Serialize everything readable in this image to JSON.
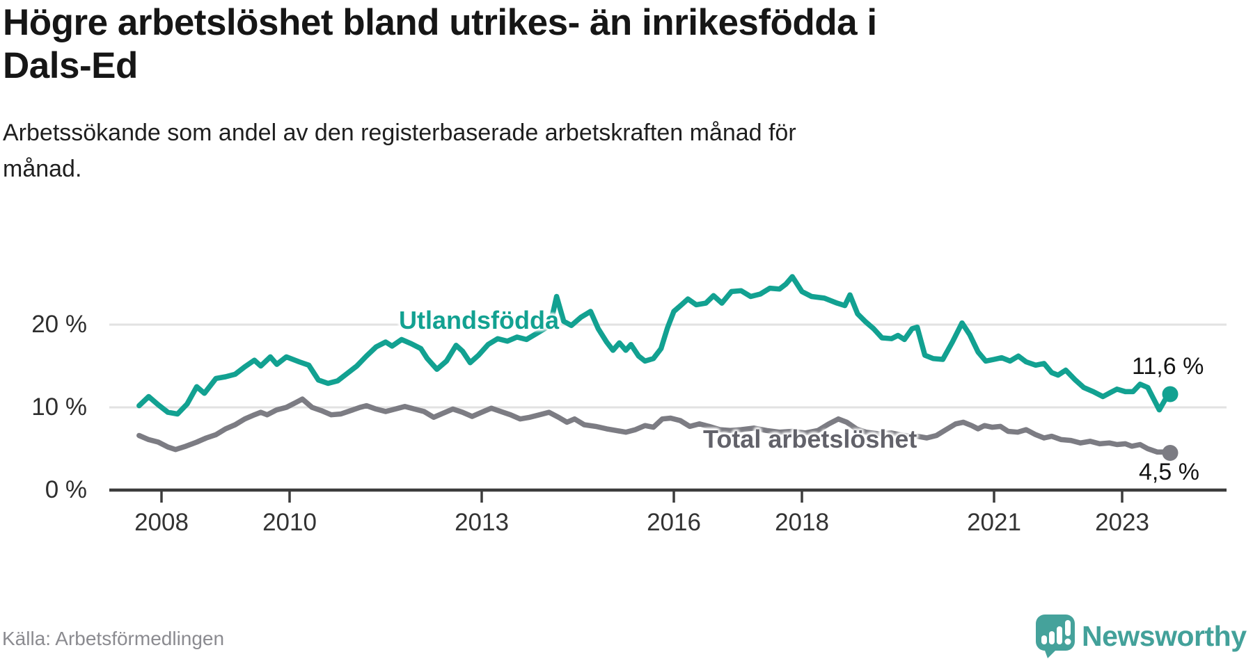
{
  "header": {
    "title_lines": [
      "Högre arbetslöshet bland utrikes- än inrikesfödda i",
      "Dals-Ed"
    ],
    "subtitle_lines": [
      "Arbetssökande som andel av den registerbaserade arbetskraften månad för",
      "månad."
    ]
  },
  "footer": {
    "source": "Källa: Arbetsförmedlingen",
    "brand_name": "Newsworthy",
    "brand_color": "#45a29b",
    "brand_icon": "bar-chart-speech-bubble-icon"
  },
  "chart_data": {
    "type": "line",
    "title": "Högre arbetslöshet bland utrikes- än inrikesfödda i Dals-Ed",
    "subtitle": "Arbetssökande som andel av den registerbaserade arbetskraften månad för månad.",
    "xlabel": "",
    "ylabel": "",
    "x_ticks": [
      2008,
      2010,
      2013,
      2016,
      2018,
      2021,
      2023
    ],
    "y_ticks": [
      0,
      10,
      20
    ],
    "y_tick_suffix": " %",
    "xlim": [
      2007.6,
      2024.2
    ],
    "ylim": [
      0,
      27
    ],
    "grid": "horizontal-only",
    "legend_position": "inline-labels",
    "colors": {
      "axis": "#3c3c3c",
      "grid": "#e2e2e2"
    },
    "series": [
      {
        "name": "Utlandsfödda",
        "color": "#12a191",
        "label_color": "#12a191",
        "end_label": "11,6 %",
        "end_value": 11.6,
        "points": [
          [
            2007.65,
            10.2
          ],
          [
            2007.8,
            11.3
          ],
          [
            2007.95,
            10.3
          ],
          [
            2008.1,
            9.4
          ],
          [
            2008.25,
            9.2
          ],
          [
            2008.4,
            10.4
          ],
          [
            2008.55,
            12.5
          ],
          [
            2008.67,
            11.7
          ],
          [
            2008.85,
            13.5
          ],
          [
            2009.0,
            13.7
          ],
          [
            2009.15,
            14.0
          ],
          [
            2009.3,
            14.9
          ],
          [
            2009.45,
            15.7
          ],
          [
            2009.55,
            15.0
          ],
          [
            2009.7,
            16.1
          ],
          [
            2009.8,
            15.2
          ],
          [
            2009.95,
            16.1
          ],
          [
            2010.15,
            15.5
          ],
          [
            2010.3,
            15.1
          ],
          [
            2010.45,
            13.3
          ],
          [
            2010.6,
            12.9
          ],
          [
            2010.75,
            13.2
          ],
          [
            2010.9,
            14.1
          ],
          [
            2011.05,
            15.0
          ],
          [
            2011.2,
            16.2
          ],
          [
            2011.35,
            17.3
          ],
          [
            2011.5,
            17.9
          ],
          [
            2011.6,
            17.4
          ],
          [
            2011.75,
            18.2
          ],
          [
            2011.9,
            17.7
          ],
          [
            2012.05,
            17.1
          ],
          [
            2012.15,
            15.9
          ],
          [
            2012.3,
            14.6
          ],
          [
            2012.45,
            15.6
          ],
          [
            2012.6,
            17.5
          ],
          [
            2012.7,
            16.8
          ],
          [
            2012.82,
            15.4
          ],
          [
            2012.95,
            16.3
          ],
          [
            2013.1,
            17.6
          ],
          [
            2013.25,
            18.3
          ],
          [
            2013.4,
            18.0
          ],
          [
            2013.55,
            18.5
          ],
          [
            2013.7,
            18.2
          ],
          [
            2013.85,
            18.9
          ],
          [
            2014.0,
            19.6
          ],
          [
            2014.1,
            21.0
          ],
          [
            2014.17,
            23.4
          ],
          [
            2014.28,
            20.4
          ],
          [
            2014.4,
            19.9
          ],
          [
            2014.55,
            20.9
          ],
          [
            2014.7,
            21.6
          ],
          [
            2014.82,
            19.5
          ],
          [
            2014.95,
            17.9
          ],
          [
            2015.05,
            16.9
          ],
          [
            2015.15,
            17.8
          ],
          [
            2015.25,
            16.9
          ],
          [
            2015.33,
            17.6
          ],
          [
            2015.45,
            16.2
          ],
          [
            2015.55,
            15.6
          ],
          [
            2015.68,
            15.9
          ],
          [
            2015.8,
            17.1
          ],
          [
            2015.9,
            19.6
          ],
          [
            2016.0,
            21.6
          ],
          [
            2016.12,
            22.4
          ],
          [
            2016.22,
            23.1
          ],
          [
            2016.35,
            22.4
          ],
          [
            2016.5,
            22.6
          ],
          [
            2016.62,
            23.5
          ],
          [
            2016.75,
            22.6
          ],
          [
            2016.9,
            24.0
          ],
          [
            2017.05,
            24.1
          ],
          [
            2017.2,
            23.4
          ],
          [
            2017.35,
            23.7
          ],
          [
            2017.5,
            24.4
          ],
          [
            2017.65,
            24.3
          ],
          [
            2017.75,
            24.9
          ],
          [
            2017.85,
            25.8
          ],
          [
            2018.0,
            24.0
          ],
          [
            2018.15,
            23.4
          ],
          [
            2018.35,
            23.2
          ],
          [
            2018.55,
            22.6
          ],
          [
            2018.67,
            22.3
          ],
          [
            2018.75,
            23.6
          ],
          [
            2018.87,
            21.3
          ],
          [
            2019.0,
            20.3
          ],
          [
            2019.12,
            19.5
          ],
          [
            2019.25,
            18.4
          ],
          [
            2019.4,
            18.3
          ],
          [
            2019.5,
            18.7
          ],
          [
            2019.6,
            18.2
          ],
          [
            2019.72,
            19.5
          ],
          [
            2019.8,
            19.7
          ],
          [
            2019.92,
            16.3
          ],
          [
            2020.05,
            15.9
          ],
          [
            2020.2,
            15.8
          ],
          [
            2020.35,
            17.9
          ],
          [
            2020.5,
            20.2
          ],
          [
            2020.62,
            18.8
          ],
          [
            2020.75,
            16.7
          ],
          [
            2020.87,
            15.6
          ],
          [
            2021.0,
            15.8
          ],
          [
            2021.12,
            16.0
          ],
          [
            2021.25,
            15.6
          ],
          [
            2021.38,
            16.2
          ],
          [
            2021.5,
            15.5
          ],
          [
            2021.65,
            15.1
          ],
          [
            2021.78,
            15.3
          ],
          [
            2021.9,
            14.2
          ],
          [
            2022.0,
            13.9
          ],
          [
            2022.12,
            14.5
          ],
          [
            2022.27,
            13.3
          ],
          [
            2022.4,
            12.4
          ],
          [
            2022.55,
            11.9
          ],
          [
            2022.7,
            11.3
          ],
          [
            2022.82,
            11.8
          ],
          [
            2022.92,
            12.2
          ],
          [
            2023.05,
            11.9
          ],
          [
            2023.17,
            11.9
          ],
          [
            2023.28,
            12.8
          ],
          [
            2023.4,
            12.4
          ],
          [
            2023.5,
            10.9
          ],
          [
            2023.58,
            9.7
          ],
          [
            2023.67,
            10.9
          ],
          [
            2023.75,
            11.6
          ]
        ]
      },
      {
        "name": "Total arbetslöshet",
        "color": "#7c7c83",
        "label_color": "#62626a",
        "end_label": "4,5 %",
        "end_value": 4.5,
        "points": [
          [
            2007.65,
            6.6
          ],
          [
            2007.8,
            6.1
          ],
          [
            2007.95,
            5.8
          ],
          [
            2008.1,
            5.2
          ],
          [
            2008.22,
            4.9
          ],
          [
            2008.38,
            5.3
          ],
          [
            2008.55,
            5.8
          ],
          [
            2008.7,
            6.3
          ],
          [
            2008.85,
            6.7
          ],
          [
            2009.0,
            7.4
          ],
          [
            2009.15,
            7.9
          ],
          [
            2009.3,
            8.6
          ],
          [
            2009.45,
            9.1
          ],
          [
            2009.55,
            9.4
          ],
          [
            2009.65,
            9.1
          ],
          [
            2009.8,
            9.7
          ],
          [
            2009.95,
            10.0
          ],
          [
            2010.1,
            10.6
          ],
          [
            2010.2,
            11.0
          ],
          [
            2010.35,
            10.0
          ],
          [
            2010.5,
            9.6
          ],
          [
            2010.65,
            9.1
          ],
          [
            2010.8,
            9.2
          ],
          [
            2010.95,
            9.6
          ],
          [
            2011.1,
            10.0
          ],
          [
            2011.2,
            10.2
          ],
          [
            2011.35,
            9.8
          ],
          [
            2011.5,
            9.5
          ],
          [
            2011.65,
            9.8
          ],
          [
            2011.8,
            10.1
          ],
          [
            2011.95,
            9.8
          ],
          [
            2012.1,
            9.5
          ],
          [
            2012.25,
            8.8
          ],
          [
            2012.4,
            9.3
          ],
          [
            2012.55,
            9.8
          ],
          [
            2012.7,
            9.4
          ],
          [
            2012.85,
            8.9
          ],
          [
            2013.0,
            9.4
          ],
          [
            2013.15,
            9.9
          ],
          [
            2013.3,
            9.5
          ],
          [
            2013.45,
            9.1
          ],
          [
            2013.6,
            8.6
          ],
          [
            2013.75,
            8.8
          ],
          [
            2013.9,
            9.1
          ],
          [
            2014.05,
            9.4
          ],
          [
            2014.2,
            8.8
          ],
          [
            2014.33,
            8.2
          ],
          [
            2014.45,
            8.6
          ],
          [
            2014.6,
            7.9
          ],
          [
            2014.78,
            7.7
          ],
          [
            2014.95,
            7.4
          ],
          [
            2015.1,
            7.2
          ],
          [
            2015.25,
            7.0
          ],
          [
            2015.4,
            7.3
          ],
          [
            2015.55,
            7.8
          ],
          [
            2015.68,
            7.6
          ],
          [
            2015.82,
            8.6
          ],
          [
            2015.95,
            8.7
          ],
          [
            2016.1,
            8.4
          ],
          [
            2016.25,
            7.7
          ],
          [
            2016.4,
            8.0
          ],
          [
            2016.55,
            7.7
          ],
          [
            2016.72,
            7.3
          ],
          [
            2016.88,
            7.2
          ],
          [
            2017.05,
            7.3
          ],
          [
            2017.25,
            7.5
          ],
          [
            2017.45,
            7.2
          ],
          [
            2017.65,
            7.0
          ],
          [
            2017.85,
            7.1
          ],
          [
            2018.05,
            6.9
          ],
          [
            2018.25,
            7.2
          ],
          [
            2018.42,
            8.0
          ],
          [
            2018.57,
            8.6
          ],
          [
            2018.7,
            8.2
          ],
          [
            2018.85,
            7.4
          ],
          [
            2019.0,
            7.0
          ],
          [
            2019.2,
            6.8
          ],
          [
            2019.4,
            6.9
          ],
          [
            2019.6,
            6.6
          ],
          [
            2019.8,
            6.5
          ],
          [
            2019.95,
            6.3
          ],
          [
            2020.1,
            6.6
          ],
          [
            2020.25,
            7.3
          ],
          [
            2020.4,
            8.0
          ],
          [
            2020.52,
            8.2
          ],
          [
            2020.65,
            7.8
          ],
          [
            2020.75,
            7.4
          ],
          [
            2020.85,
            7.8
          ],
          [
            2020.97,
            7.6
          ],
          [
            2021.1,
            7.7
          ],
          [
            2021.22,
            7.1
          ],
          [
            2021.37,
            7.0
          ],
          [
            2021.5,
            7.3
          ],
          [
            2021.65,
            6.7
          ],
          [
            2021.78,
            6.3
          ],
          [
            2021.9,
            6.5
          ],
          [
            2022.05,
            6.1
          ],
          [
            2022.2,
            6.0
          ],
          [
            2022.35,
            5.7
          ],
          [
            2022.5,
            5.9
          ],
          [
            2022.65,
            5.6
          ],
          [
            2022.8,
            5.7
          ],
          [
            2022.92,
            5.5
          ],
          [
            2023.05,
            5.6
          ],
          [
            2023.15,
            5.3
          ],
          [
            2023.28,
            5.5
          ],
          [
            2023.4,
            5.0
          ],
          [
            2023.55,
            4.6
          ],
          [
            2023.67,
            4.6
          ],
          [
            2023.75,
            4.5
          ]
        ]
      }
    ]
  }
}
